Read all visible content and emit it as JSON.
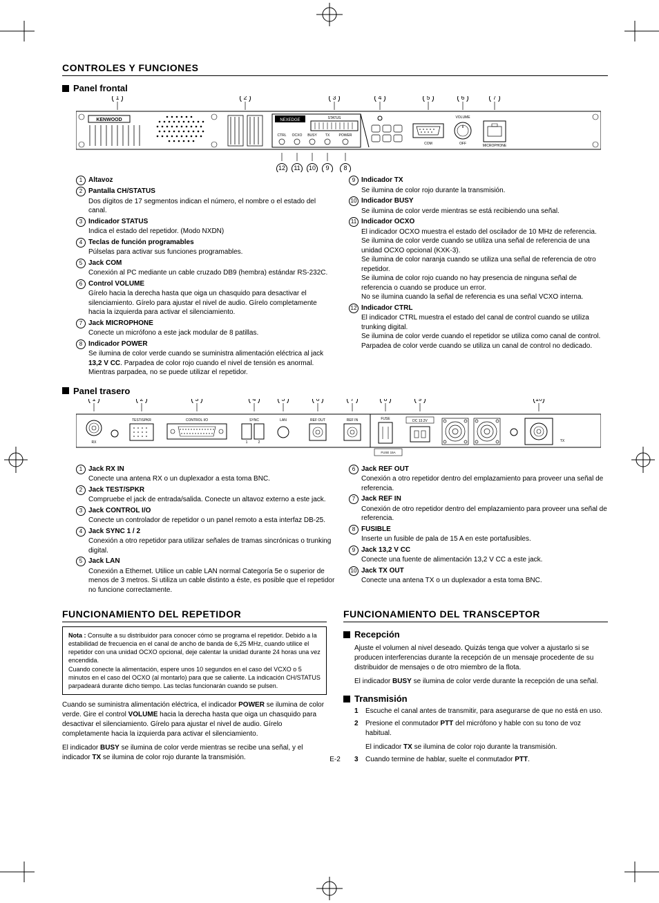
{
  "page_number": "E-2",
  "main_heading": "CONTROLES Y FUNCIONES",
  "front": {
    "heading": "Panel frontal",
    "brand": "KENWOOD",
    "model": "NEXEDGE",
    "disp_labels": {
      "status": "STATUS",
      "ctrl": "CTRL",
      "ocxo": "OCXO",
      "busy": "BUSY",
      "tx": "TX",
      "power": "POWER"
    },
    "right_labels": {
      "volume": "VOLUME",
      "com": "COM",
      "off": "OFF",
      "mic": "MICROPHONE"
    },
    "callouts_top": [
      "1",
      "2",
      "3",
      "4",
      "5",
      "6",
      "7"
    ],
    "callouts_bottom": [
      "12",
      "11",
      "10",
      "9",
      "8"
    ],
    "left": [
      {
        "n": "1",
        "label": "Altavoz",
        "desc": ""
      },
      {
        "n": "2",
        "label": "Pantalla CH/STATUS",
        "desc": "Dos dígitos de 17 segmentos indican el número, el nombre o el estado del canal."
      },
      {
        "n": "3",
        "label": "Indicador STATUS",
        "desc": "Indica el estado del repetidor. (Modo NXDN)"
      },
      {
        "n": "4",
        "label": "Teclas de función programables",
        "desc": "Púlselas para activar sus funciones programables."
      },
      {
        "n": "5",
        "label": "Jack COM",
        "desc": "Conexión al PC mediante un cable cruzado DB9 (hembra) estándar RS-232C."
      },
      {
        "n": "6",
        "label": "Control VOLUME",
        "desc": "Gírelo hacia la derecha hasta que oiga un chasquido para desactivar el silenciamiento. Gírelo para ajustar el nivel de audio. Gírelo completamente hacia la izquierda para activar el silenciamiento."
      },
      {
        "n": "7",
        "label": "Jack MICROPHONE",
        "desc": "Conecte un micrófono a este jack modular de 8 patillas."
      },
      {
        "n": "8",
        "label": "Indicador POWER",
        "desc": "Se ilumina de color verde cuando se suministra alimentación eléctrica al jack <b>13,2 V CC</b>. Parpadea de color rojo cuando el nivel de tensión es anormal. Mientras parpadea, no se puede utilizar el repetidor."
      }
    ],
    "right": [
      {
        "n": "9",
        "label": "Indicador TX",
        "desc": "Se ilumina de color rojo durante la transmisión."
      },
      {
        "n": "10",
        "label": "Indicador BUSY",
        "desc": "Se ilumina de color verde mientras se está recibiendo una señal."
      },
      {
        "n": "11",
        "label": "Indicador OCXO",
        "desc": "El indicador OCXO muestra el estado del oscilador de 10 MHz de referencia.<br>Se ilumina de color verde cuando se utiliza una señal de referencia de una unidad OCXO opcional (KXK-3).<br>Se ilumina de color naranja cuando se utiliza una señal de referencia de otro repetidor.<br>Se ilumina de color rojo cuando no hay presencia de ninguna señal de referencia o cuando se produce un error.<br>No se ilumina cuando la señal de referencia es una señal VCXO interna."
      },
      {
        "n": "12",
        "label": "Indicador CTRL",
        "desc": "El indicador CTRL muestra el estado del canal de control cuando se utiliza trunking digital.<br>Se ilumina de color verde cuando el repetidor se utiliza como canal de control.<br>Parpadea de color verde cuando se utiliza un canal de control no dedicado."
      }
    ]
  },
  "rear": {
    "heading": "Panel trasero",
    "labels": {
      "rx": "RX",
      "test": "TEST/SPKR",
      "ctrl": "CONTROL I/O",
      "c1": "1",
      "c2": "2",
      "sync": "SYNC",
      "lan": "LAN",
      "refout": "REF OUT",
      "refin": "REF IN",
      "fuse": "FUSE",
      "fuse15": "FUSE 15A",
      "dc": "DC 13.2V",
      "tx": "TX"
    },
    "callouts_top": [
      "1",
      "2",
      "3",
      "4",
      "5",
      "6",
      "7",
      "8",
      "9",
      "10"
    ],
    "left": [
      {
        "n": "1",
        "label": "Jack RX IN",
        "desc": "Conecte una antena RX o un duplexador a esta toma BNC."
      },
      {
        "n": "2",
        "label": "Jack TEST/SPKR",
        "desc": "Compruebe el jack de entrada/salida.  Conecte un altavoz externo a este jack."
      },
      {
        "n": "3",
        "label": "Jack CONTROL I/O",
        "desc": "Conecte un controlador de repetidor o un panel remoto a esta interfaz DB-25."
      },
      {
        "n": "4",
        "label": "Jack SYNC 1 / 2",
        "desc": "Conexión a otro repetidor para utilizar señales de tramas sincrónicas o trunking digital."
      },
      {
        "n": "5",
        "label": "Jack LAN",
        "desc": "Conexión a Ethernet.  Utilice un cable LAN normal Categoría 5e o superior de menos de 3 metros.  Si utiliza un cable distinto a éste, es posible que el repetidor no funcione correctamente."
      }
    ],
    "right": [
      {
        "n": "6",
        "label": "Jack REF OUT",
        "desc": "Conexión a otro repetidor dentro del emplazamiento para proveer una señal de referencia."
      },
      {
        "n": "7",
        "label": "Jack REF IN",
        "desc": "Conexión de otro repetidor dentro del emplazamiento para proveer una señal de referencia."
      },
      {
        "n": "8",
        "label": "FUSIBLE",
        "desc": "Inserte un fusible de pala de 15 A en este portafusibles."
      },
      {
        "n": "9",
        "label": "Jack 13,2 V CC",
        "desc": "Conecte una fuente de alimentación 13,2 V CC a este jack."
      },
      {
        "n": "10",
        "label": "Jack TX OUT",
        "desc": "Conecte una antena TX o un duplexador a esta toma BNC."
      }
    ]
  },
  "repeater": {
    "heading": "FUNCIONAMIENTO DEL REPETIDOR",
    "note": "<b>Nota :</b> Consulte a su distribuidor para conocer cómo se programa el repetidor. Debido a la estabilidad de frecuencia en el canal de ancho de banda de 6,25 MHz, cuando utilice el repetidor con una unidad OCXO opcional, deje calentar la unidad durante 24 horas una vez encendida.<br>Cuando conecte la alimentación, espere unos 10 segundos en el caso del VCXO o 5 minutos en el caso del OCXO (al montarlo) para que se caliente. La indicación CH/STATUS parpadeará durante dicho tiempo. Las teclas funcionarán cuando se pulsen.",
    "p1": "Cuando se suministra alimentación eléctrica, el indicador <b>POWER</b> se ilumina de color verde. Gire el control <b>VOLUME</b> hacia la derecha hasta que oiga un chasquido para desactivar el silenciamiento. Gírelo para ajustar el nivel de audio. Gírelo completamente hacia la izquierda para activar el silenciamiento.",
    "p2": "El indicador <b>BUSY</b> se ilumina de color verde mientras se recibe una señal, y el indicador <b>TX</b> se ilumina de color rojo durante la transmisión."
  },
  "transceiver": {
    "heading": "FUNCIONAMIENTO DEL TRANSCEPTOR",
    "rx_head": "Recepción",
    "rx_p1": "Ajuste el volumen al nivel deseado.  Quizás tenga que volver a ajustarlo si se producen interferencias durante la recepción de un mensaje procedente de su distribuidor de mensajes o de otro miembro de la flota.",
    "rx_p2": "El indicador <b>BUSY</b> se ilumina de color verde durante la recepción de una señal.",
    "tx_head": "Transmisión",
    "steps": [
      {
        "n": "1",
        "t": "Escuche el canal antes de transmitir, para asegurarse de que no está en uso."
      },
      {
        "n": "2",
        "t": "Presione el conmutador <b>PTT</b> del micrófono y hable con su tono de voz habitual.",
        "sub": "El indicador <b>TX</b> se ilumina de color rojo durante la transmisión."
      },
      {
        "n": "3",
        "t": "Cuando termine de hablar, suelte el conmutador <b>PTT</b>."
      }
    ]
  }
}
